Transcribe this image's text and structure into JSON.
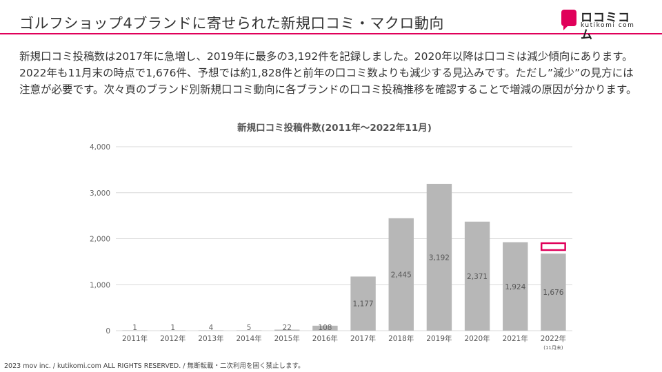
{
  "header": {
    "title": "ゴルフショップ4ブランドに寄せられた新規口コミ・マクロ動向",
    "logo_text": "ロコミコム",
    "logo_sub": "kutikomi com"
  },
  "body_text": "新規口コミ投稿数は2017年に急増し、2019年に最多の3,192件を記録しました。2020年以降は口コミは減少傾向にあります。2022年も11月末の時点で1,676件、予想では約1,828件と前年の口コミ数よりも減少する見込みです。ただし”減少”の見方には注意が必要です。次々頁のブランド別新規口コミ動向に各ブランドの口コミ投稿推移を確認することで増減の原因が分かります。",
  "footer": "2023 mov inc. / kutikomi.com ALL RIGHTS RESERVED. / 無断転載・二次利用を固く禁止します。",
  "chart_data": {
    "type": "bar",
    "title": "新規口コミ投稿件数(2011年〜2022年11月)",
    "categories": [
      "2011年",
      "2012年",
      "2013年",
      "2014年",
      "2015年",
      "2016年",
      "2017年",
      "2018年",
      "2019年",
      "2020年",
      "2021年",
      "2022年"
    ],
    "category_notes": [
      "",
      "",
      "",
      "",
      "",
      "",
      "",
      "",
      "",
      "",
      "",
      "(11月末)"
    ],
    "values": [
      1,
      1,
      4,
      5,
      22,
      108,
      1177,
      2445,
      3192,
      2371,
      1924,
      1676
    ],
    "value_labels": [
      "1",
      "1",
      "4",
      "5",
      "22",
      "108",
      "1,177",
      "2,445",
      "3,192",
      "2,371",
      "1,924",
      "1,676"
    ],
    "forecast_value": 1828,
    "ylim": [
      0,
      4000
    ],
    "yticks": [
      0,
      1000,
      2000,
      3000,
      4000
    ],
    "ytick_labels": [
      "0",
      "1,000",
      "2,000",
      "3,000",
      "4,000"
    ],
    "grid": true,
    "colors": {
      "bar": "#b7b7b7",
      "forecast_outline": "#e0005a",
      "grid": "#d9d9d9",
      "label": "#555555"
    }
  }
}
